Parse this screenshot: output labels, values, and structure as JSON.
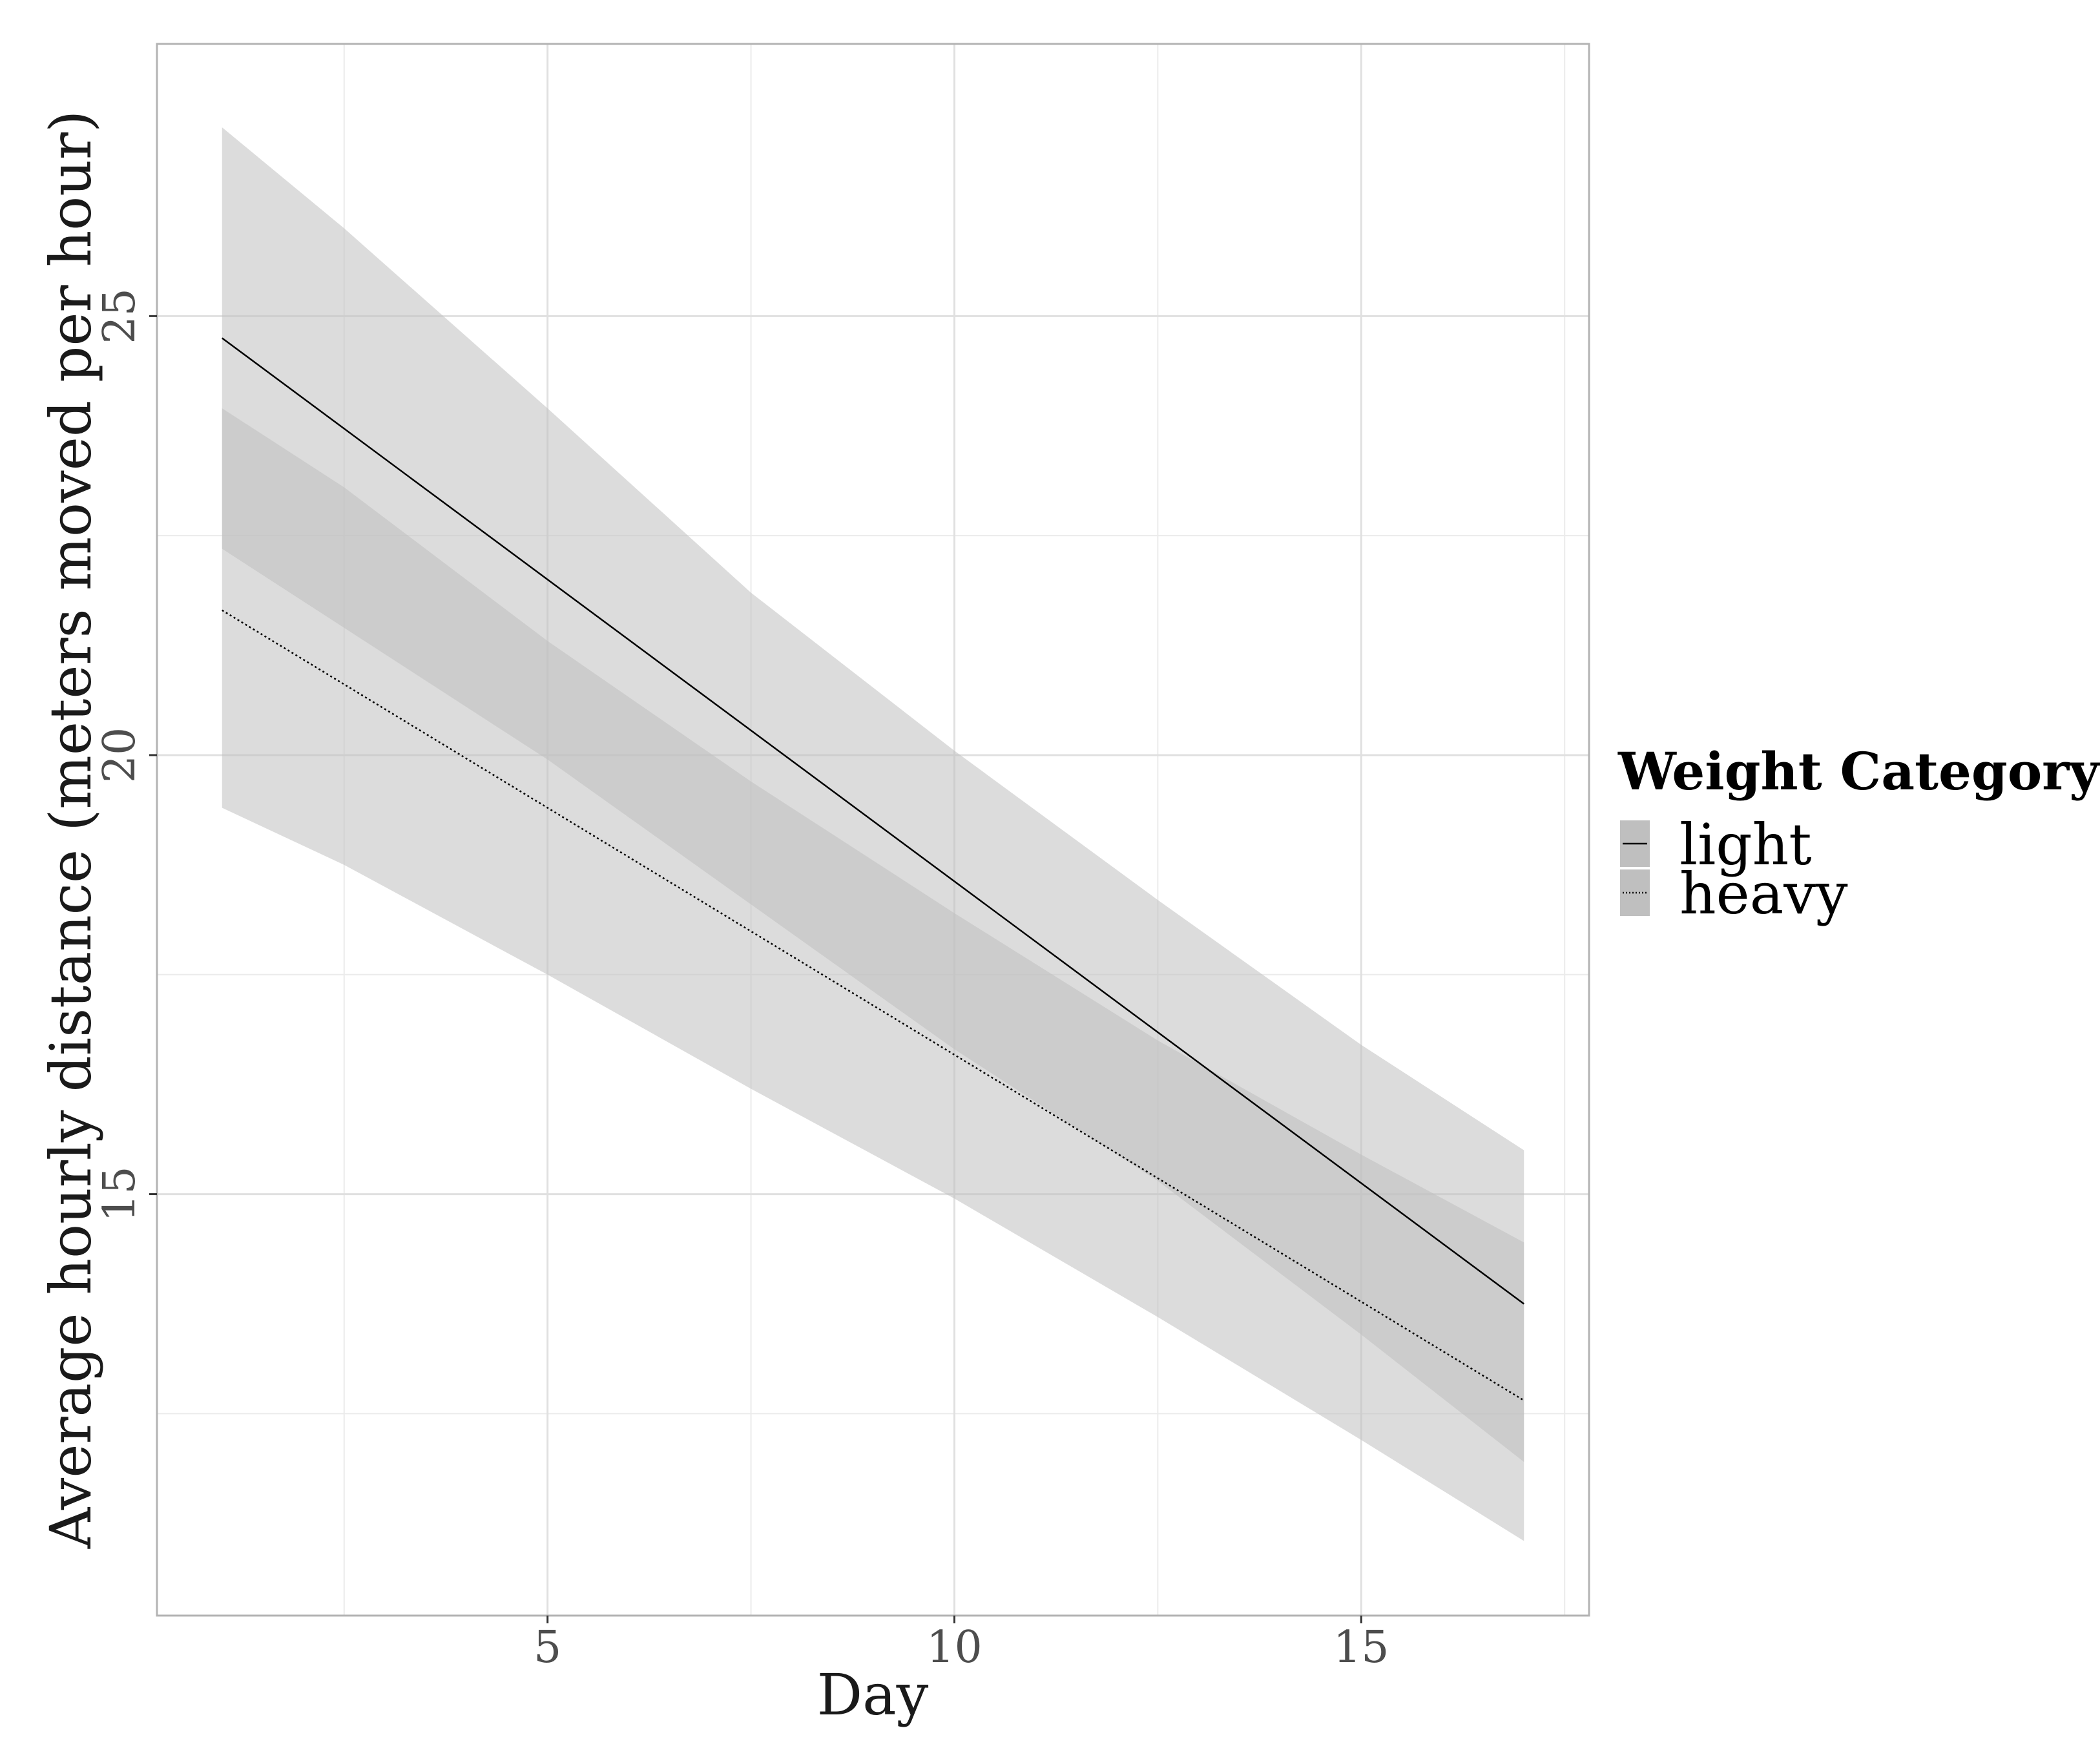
{
  "chart_data": {
    "type": "line",
    "title": "",
    "xlabel": "Day",
    "ylabel": "Average hourly distance (meters moved per hour)",
    "xlim": [
      0.2,
      17.8
    ],
    "ylim": [
      10.2,
      28.1
    ],
    "x_ticks": [
      5,
      10,
      15
    ],
    "x_tick_labels": [
      "5",
      "10",
      "15"
    ],
    "x_minor_ticks": [
      2.5,
      7.5,
      12.5,
      17.5
    ],
    "y_ticks": [
      15,
      20,
      25
    ],
    "y_tick_labels": [
      "15",
      "20",
      "25"
    ],
    "y_minor_ticks": [
      12.5,
      17.5,
      22.5
    ],
    "grid": true,
    "panel_border": true,
    "legend": {
      "title": "Weight Category",
      "position": "right",
      "entries": [
        {
          "label": "light",
          "line_style": "solid"
        },
        {
          "label": "heavy",
          "line_style": "dotted"
        }
      ]
    },
    "series": [
      {
        "name": "light",
        "line_style": "solid",
        "line_color": "#000000",
        "ribbon_color": "#bfbfbf",
        "x": [
          1,
          17
        ],
        "y": [
          24.75,
          13.75
        ],
        "ribbon": {
          "x": [
            1,
            2.5,
            5,
            7.5,
            10,
            12.5,
            15,
            17
          ],
          "lower": [
            19.4,
            18.75,
            17.5,
            16.2,
            14.95,
            13.6,
            12.2,
            11.05
          ],
          "upper": [
            27.15,
            26.0,
            23.95,
            21.85,
            20.05,
            18.35,
            16.7,
            15.5
          ]
        }
      },
      {
        "name": "heavy",
        "line_style": "dotted",
        "line_color": "#000000",
        "ribbon_color": "#bfbfbf",
        "x": [
          1,
          17
        ],
        "y": [
          21.65,
          12.65
        ],
        "ribbon": {
          "x": [
            1,
            2.5,
            5,
            7.5,
            10,
            12.5,
            15,
            17
          ],
          "lower": [
            22.35,
            21.45,
            19.95,
            18.3,
            16.65,
            15.15,
            13.4,
            11.95
          ],
          "upper": [
            23.95,
            23.05,
            21.3,
            19.7,
            18.2,
            16.75,
            15.45,
            14.45
          ]
        }
      }
    ]
  }
}
